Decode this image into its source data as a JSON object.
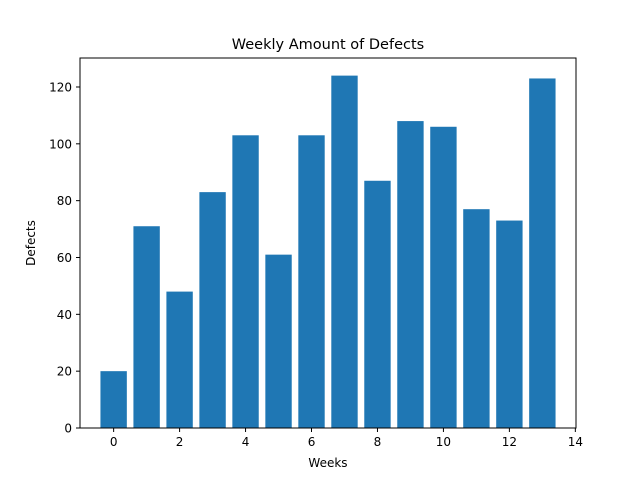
{
  "chart_data": {
    "type": "bar",
    "title": "Weekly Amount of Defects",
    "xlabel": "Weeks",
    "ylabel": "Defects",
    "x": [
      0,
      1,
      2,
      3,
      4,
      5,
      6,
      7,
      8,
      9,
      10,
      11,
      12,
      13
    ],
    "values": [
      20,
      71,
      48,
      83,
      103,
      61,
      103,
      124,
      87,
      108,
      106,
      77,
      73,
      123
    ],
    "xlim": [
      -1.02,
      14.02
    ],
    "ylim": [
      0,
      130.2
    ],
    "xticks": [
      0,
      2,
      4,
      6,
      8,
      10,
      12,
      14
    ],
    "yticks": [
      0,
      20,
      40,
      60,
      80,
      100,
      120
    ],
    "bar_color": "#1f77b4",
    "grid": false,
    "legend": "none"
  }
}
